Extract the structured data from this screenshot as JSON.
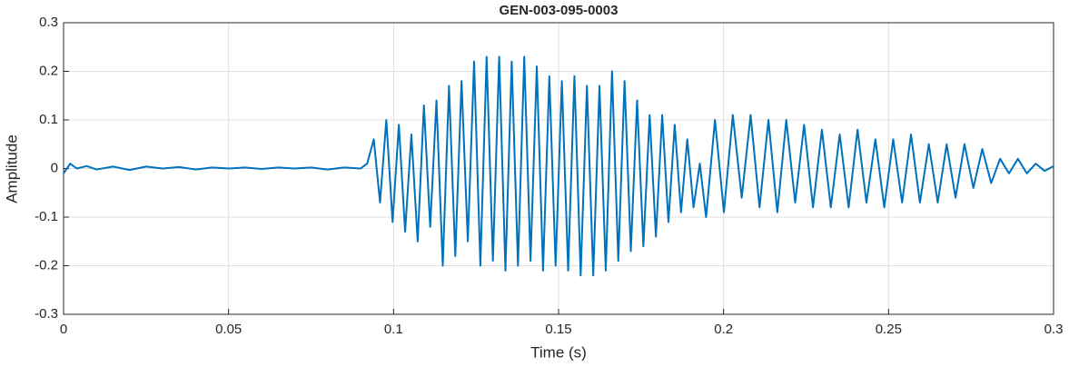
{
  "chart_data": {
    "type": "line",
    "title": "GEN-003-095-0003",
    "x_label": "Time (s)",
    "y_label": "Amplitude",
    "color": "#0072bd",
    "grid": true,
    "xlim": [
      0,
      0.3
    ],
    "xticks": [
      0,
      0.05,
      0.1,
      0.15,
      0.2,
      0.25,
      0.3
    ],
    "ylim": [
      -0.3,
      0.3
    ],
    "yticks": [
      -0.3,
      -0.2,
      -0.1,
      0,
      0.1,
      0.2,
      0.3
    ],
    "x": [
      0,
      0.002,
      0.004,
      0.007,
      0.01,
      0.015,
      0.02,
      0.025,
      0.03,
      0.035,
      0.04,
      0.045,
      0.05,
      0.055,
      0.06,
      0.065,
      0.07,
      0.075,
      0.08,
      0.085,
      0.09,
      0.092,
      0.094,
      0.0959,
      0.0978,
      0.0997,
      0.1016,
      0.1035,
      0.1054,
      0.1073,
      0.1092,
      0.1111,
      0.113,
      0.1149,
      0.1168,
      0.1187,
      0.1206,
      0.1225,
      0.1244,
      0.1263,
      0.1282,
      0.1301,
      0.132,
      0.1339,
      0.1358,
      0.1377,
      0.1396,
      0.1415,
      0.1434,
      0.1453,
      0.1472,
      0.1491,
      0.151,
      0.1529,
      0.1548,
      0.1567,
      0.1586,
      0.1605,
      0.1624,
      0.1643,
      0.1662,
      0.1681,
      0.17,
      0.1719,
      0.1738,
      0.1757,
      0.1776,
      0.1795,
      0.1814,
      0.1833,
      0.1852,
      0.1871,
      0.189,
      0.1909,
      0.1928,
      0.1947,
      0.1974,
      0.2001,
      0.2028,
      0.2055,
      0.2082,
      0.2109,
      0.2136,
      0.2163,
      0.219,
      0.2217,
      0.2244,
      0.2271,
      0.2298,
      0.2325,
      0.2352,
      0.2379,
      0.2406,
      0.2433,
      0.246,
      0.2487,
      0.2514,
      0.2541,
      0.2568,
      0.2595,
      0.2622,
      0.2649,
      0.2676,
      0.2703,
      0.273,
      0.2757,
      0.2784,
      0.2811,
      0.2838,
      0.2865,
      0.2892,
      0.2919,
      0.2946,
      0.2973,
      0.3
    ],
    "values": [
      -0.01,
      0.01,
      0.0,
      0.005,
      -0.002,
      0.004,
      -0.003,
      0.004,
      0.0,
      0.003,
      -0.002,
      0.002,
      0.0,
      0.002,
      -0.001,
      0.002,
      0.0,
      0.002,
      -0.002,
      0.002,
      0.0,
      0.01,
      0.06,
      -0.07,
      0.1,
      -0.11,
      0.09,
      -0.13,
      0.07,
      -0.15,
      0.13,
      -0.12,
      0.14,
      -0.2,
      0.17,
      -0.18,
      0.18,
      -0.15,
      0.22,
      -0.2,
      0.23,
      -0.19,
      0.23,
      -0.21,
      0.22,
      -0.2,
      0.23,
      -0.19,
      0.21,
      -0.21,
      0.19,
      -0.2,
      0.18,
      -0.21,
      0.19,
      -0.22,
      0.17,
      -0.22,
      0.17,
      -0.21,
      0.2,
      -0.19,
      0.18,
      -0.17,
      0.14,
      -0.16,
      0.11,
      -0.14,
      0.11,
      -0.11,
      0.09,
      -0.09,
      0.06,
      -0.08,
      0.01,
      -0.1,
      0.1,
      -0.09,
      0.11,
      -0.06,
      0.11,
      -0.08,
      0.1,
      -0.09,
      0.1,
      -0.07,
      0.09,
      -0.08,
      0.08,
      -0.08,
      0.07,
      -0.08,
      0.08,
      -0.07,
      0.06,
      -0.08,
      0.06,
      -0.07,
      0.07,
      -0.07,
      0.05,
      -0.07,
      0.05,
      -0.06,
      0.05,
      -0.04,
      0.04,
      -0.03,
      0.02,
      -0.01,
      0.02,
      -0.01,
      0.01,
      -0.005,
      0.005
    ]
  }
}
